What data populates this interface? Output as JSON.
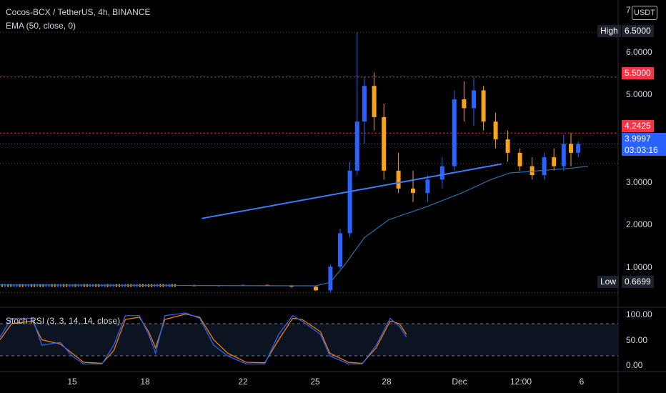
{
  "legend": {
    "symbol": "Cocos-BCX / TetherUS, 4h, BINANCE",
    "indicator": "EMA (50, close, 0)",
    "oscillator": "Stoch RSI (3, 3, 14, 14, close)"
  },
  "currency_badge": "USDT",
  "price_axis": {
    "top_partial": "7",
    "ticks": [
      "6.0000",
      "5.0000",
      "3.0000",
      "2.0000",
      "1.0000"
    ]
  },
  "tags": {
    "high_label": "High",
    "high_value": "6.5000",
    "level_1": "5.5000",
    "level_2": "4.2425",
    "current_price": "3.9997",
    "countdown": "03:03:16",
    "low_label": "Low",
    "low_value": "0.6699"
  },
  "osc_axis": [
    "100.00",
    "50.00",
    "0.00"
  ],
  "time_axis": [
    "15",
    "18",
    "22",
    "25",
    "28",
    "Dec",
    "12:00",
    "6"
  ],
  "colors": {
    "bull": "#2962ff",
    "bear": "#f7a21b",
    "ema": "#2a6fa8",
    "red_level": "#f23645",
    "trendline": "#3d7bff",
    "stoch_k": "#2962ff",
    "stoch_d": "#f57c00"
  },
  "chart_data": {
    "type": "candlestick",
    "y_range": [
      0.5,
      7.0
    ],
    "levels": [
      6.5,
      5.5,
      4.2425,
      3.9997,
      0.6699
    ],
    "trendline": {
      "from": [
        3.3,
        2.33
      ],
      "to": [
        9.1,
        3.55
      ]
    },
    "candles_approx": [
      [
        0.0,
        0.82,
        0.84,
        0.8,
        0.83
      ],
      [
        0.5,
        0.83,
        0.85,
        0.81,
        0.82
      ],
      [
        1.0,
        0.82,
        0.84,
        0.8,
        0.83
      ],
      [
        1.5,
        0.83,
        0.86,
        0.81,
        0.84
      ],
      [
        2.0,
        0.84,
        0.85,
        0.81,
        0.82
      ],
      [
        2.5,
        0.82,
        0.84,
        0.78,
        0.8
      ],
      [
        3.0,
        0.8,
        0.82,
        0.7,
        0.72
      ],
      [
        3.3,
        0.72,
        1.3,
        0.67,
        1.25
      ],
      [
        3.5,
        1.25,
        2.1,
        1.2,
        2.0
      ],
      [
        3.7,
        2.0,
        3.6,
        1.9,
        3.4
      ],
      [
        3.85,
        3.4,
        6.5,
        3.3,
        4.5
      ],
      [
        4.0,
        4.5,
        5.5,
        4.0,
        5.3
      ],
      [
        4.2,
        5.3,
        5.6,
        4.3,
        4.6
      ],
      [
        4.4,
        4.6,
        4.9,
        3.2,
        3.4
      ],
      [
        4.7,
        3.4,
        3.8,
        2.9,
        3.0
      ],
      [
        5.0,
        3.0,
        3.4,
        2.7,
        2.9
      ],
      [
        5.3,
        2.9,
        3.3,
        2.7,
        3.2
      ],
      [
        5.6,
        3.2,
        3.7,
        3.0,
        3.5
      ],
      [
        5.85,
        3.5,
        5.2,
        3.4,
        5.0
      ],
      [
        6.05,
        5.0,
        5.4,
        4.5,
        4.8
      ],
      [
        6.25,
        4.8,
        5.5,
        4.4,
        5.2
      ],
      [
        6.45,
        5.2,
        5.3,
        4.3,
        4.5
      ],
      [
        6.7,
        4.5,
        4.7,
        3.9,
        4.1
      ],
      [
        6.95,
        4.1,
        4.3,
        3.6,
        3.8
      ],
      [
        7.2,
        3.8,
        3.9,
        3.4,
        3.5
      ],
      [
        7.45,
        3.5,
        3.7,
        3.2,
        3.3
      ],
      [
        7.7,
        3.3,
        3.8,
        3.2,
        3.7
      ],
      [
        7.9,
        3.7,
        3.9,
        3.4,
        3.5
      ],
      [
        8.1,
        3.5,
        4.2,
        3.4,
        4.0
      ],
      [
        8.25,
        4.0,
        4.25,
        3.5,
        3.8
      ],
      [
        8.4,
        3.8,
        4.05,
        3.7,
        3.9997
      ]
    ],
    "stoch_k": [
      [
        0,
        55
      ],
      [
        0.25,
        90
      ],
      [
        0.7,
        90
      ],
      [
        0.9,
        40
      ],
      [
        1.3,
        45
      ],
      [
        1.55,
        20
      ],
      [
        1.8,
        5
      ],
      [
        2.2,
        5
      ],
      [
        2.45,
        40
      ],
      [
        2.7,
        95
      ],
      [
        3.0,
        95
      ],
      [
        3.2,
        60
      ],
      [
        3.35,
        25
      ],
      [
        3.55,
        95
      ],
      [
        4.0,
        100
      ],
      [
        4.3,
        90
      ],
      [
        4.6,
        40
      ],
      [
        4.9,
        20
      ],
      [
        5.3,
        5
      ],
      [
        5.7,
        5
      ],
      [
        6.0,
        60
      ],
      [
        6.3,
        95
      ],
      [
        6.5,
        85
      ],
      [
        6.9,
        60
      ],
      [
        7.1,
        20
      ],
      [
        7.5,
        5
      ],
      [
        7.8,
        5
      ],
      [
        8.1,
        40
      ],
      [
        8.4,
        90
      ],
      [
        8.6,
        75
      ],
      [
        8.75,
        55
      ]
    ],
    "stoch_d": [
      [
        0,
        50
      ],
      [
        0.25,
        80
      ],
      [
        0.7,
        85
      ],
      [
        0.9,
        50
      ],
      [
        1.3,
        42
      ],
      [
        1.55,
        25
      ],
      [
        1.8,
        8
      ],
      [
        2.2,
        6
      ],
      [
        2.45,
        30
      ],
      [
        2.7,
        88
      ],
      [
        3.0,
        92
      ],
      [
        3.2,
        65
      ],
      [
        3.35,
        35
      ],
      [
        3.55,
        88
      ],
      [
        4.0,
        98
      ],
      [
        4.3,
        92
      ],
      [
        4.6,
        50
      ],
      [
        4.9,
        25
      ],
      [
        5.3,
        8
      ],
      [
        5.7,
        7
      ],
      [
        6.0,
        50
      ],
      [
        6.3,
        90
      ],
      [
        6.5,
        88
      ],
      [
        6.9,
        65
      ],
      [
        7.1,
        25
      ],
      [
        7.5,
        8
      ],
      [
        7.8,
        6
      ],
      [
        8.1,
        35
      ],
      [
        8.4,
        85
      ],
      [
        8.6,
        80
      ],
      [
        8.75,
        60
      ]
    ]
  }
}
